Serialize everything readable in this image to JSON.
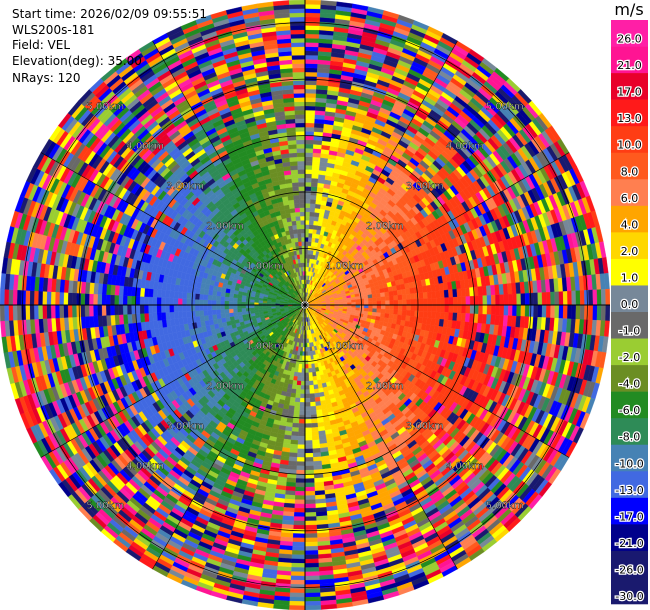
{
  "header": {
    "start_time": "Start time: 2026/02/09 09:55:51",
    "instrument": "WLS200s-181",
    "field": "Field: VEL",
    "elevation": "Elevation(deg): 35.00",
    "nrays": "NRays: 120"
  },
  "chart_data": {
    "type": "heatmap",
    "subtype": "polar-ppi",
    "field": "VEL",
    "n_rays": 120,
    "range_max_km": 5.4,
    "range_rings_km": [
      1,
      2,
      3,
      4,
      5
    ],
    "range_labels": [
      "1.00km",
      "2.00km",
      "3.00km",
      "4.00km",
      "5.00km"
    ],
    "spokes_deg": [
      0,
      30,
      60,
      90,
      120,
      150,
      180,
      210,
      240,
      270,
      300,
      330
    ],
    "colorbar": {
      "unit": "m/s",
      "tick_labels": [
        "26.0",
        "21.0",
        "17.0",
        "13.0",
        "10.0",
        "8.0",
        "6.0",
        "4.0",
        "2.0",
        "1.0",
        "0.0",
        "-1.0",
        "-2.0",
        "-4.0",
        "-6.0",
        "-8.0",
        "-10.0",
        "-13.0",
        "-17.0",
        "-21.0",
        "-26.0",
        "-30.0"
      ],
      "colors": [
        "#ff1fa6",
        "#ff1493",
        "#e8002a",
        "#ff1a1a",
        "#ff3d14",
        "#ff5a1e",
        "#ff7f50",
        "#ffa500",
        "#ffd700",
        "#ffff00",
        "#778899",
        "#696969",
        "#9acd32",
        "#6b8e23",
        "#228b22",
        "#2e8b57",
        "#4682b4",
        "#4169e1",
        "#0000ff",
        "#00008b",
        "#191970",
        "#1a1a6e"
      ]
    }
  }
}
